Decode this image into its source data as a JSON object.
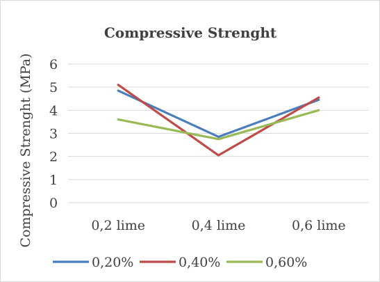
{
  "chart_data": {
    "type": "line",
    "title": "Compressive Strenght",
    "xlabel": "",
    "ylabel": "Compressive Strenght (MPa)",
    "categories": [
      "0,2 lime",
      "0,4 lime",
      "0,6 lime"
    ],
    "ylim": [
      0,
      6
    ],
    "yticks": [
      "0",
      "1",
      "2",
      "3",
      "4",
      "5",
      "6"
    ],
    "grid": true,
    "legend_position": "bottom",
    "series": [
      {
        "name": "0,20%",
        "color": "#4a7ebb",
        "values": [
          4.85,
          2.85,
          4.45
        ]
      },
      {
        "name": "0,40%",
        "color": "#be4b48",
        "values": [
          5.1,
          2.05,
          4.55
        ]
      },
      {
        "name": "0,60%",
        "color": "#98b954",
        "values": [
          3.6,
          2.75,
          4.0
        ]
      }
    ]
  }
}
